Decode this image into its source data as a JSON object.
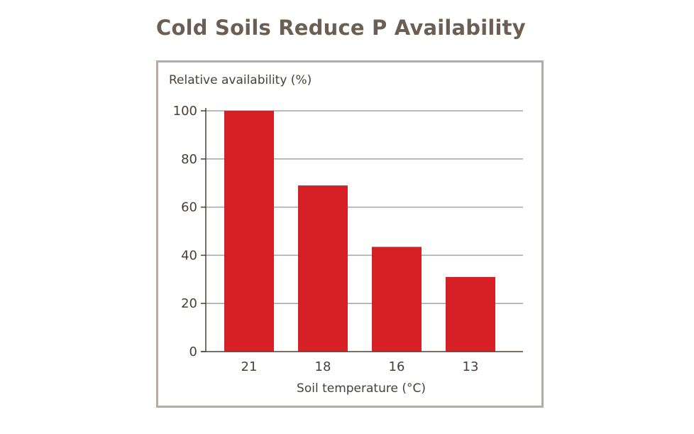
{
  "chart_data": {
    "type": "bar",
    "title": "Cold Soils Reduce P Availability",
    "ylabel": "Relative availability (%)",
    "xlabel": "Soil temperature (°C)",
    "categories": [
      "21",
      "18",
      "16",
      "13"
    ],
    "values": [
      100,
      69,
      43.5,
      31
    ],
    "ylim": [
      0,
      100
    ],
    "yticks": [
      0,
      20,
      40,
      60,
      80,
      100
    ],
    "grid": true,
    "colors": {
      "bar": "#d71f26",
      "grid": "#a9a39d",
      "axis": "#4a4038",
      "frame": "#b5aca3",
      "title": "#6b5e52"
    }
  }
}
